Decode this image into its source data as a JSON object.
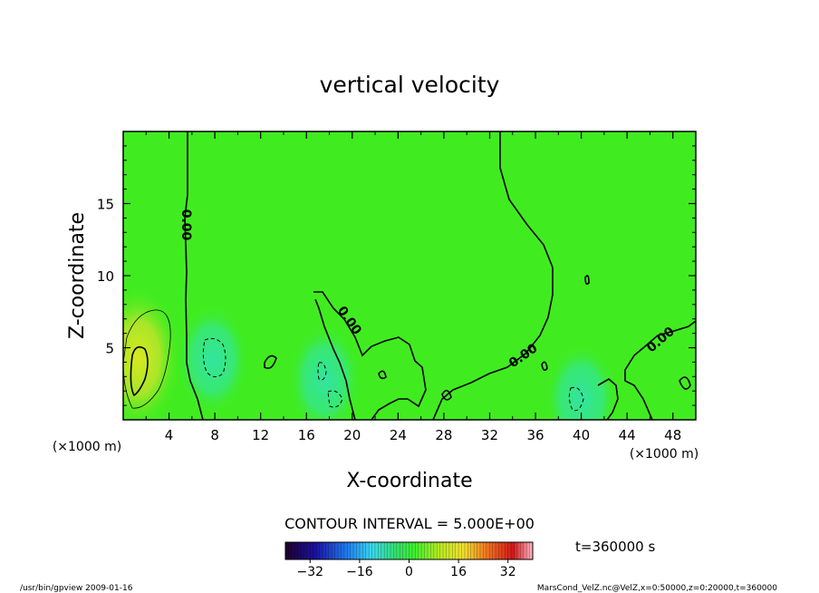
{
  "chart_data": {
    "type": "heatmap",
    "title": "vertical velocity",
    "xlabel": "X-coordinate",
    "ylabel": "Z-coordinate",
    "x_unit": "(×1000 m)",
    "y_unit": "(×1000 m)",
    "xlim": [
      0,
      50
    ],
    "ylim": [
      0,
      20
    ],
    "x_ticks": [
      "4",
      "8",
      "12",
      "16",
      "20",
      "24",
      "28",
      "32",
      "36",
      "40",
      "44",
      "48"
    ],
    "x_tick_values": [
      4,
      8,
      12,
      16,
      20,
      24,
      28,
      32,
      36,
      40,
      44,
      48
    ],
    "y_ticks": [
      "5",
      "10",
      "15"
    ],
    "y_tick_values": [
      5,
      10,
      15
    ],
    "contour_interval_label": "CONTOUR INTERVAL = 5.000E+00",
    "contour_labels": [
      "0.00",
      "0.00",
      "0.00",
      "0.00"
    ],
    "colorbar": {
      "ticks": [
        "−32",
        "−16",
        "0",
        "16",
        "32"
      ],
      "tick_values": [
        -32,
        -16,
        0,
        16,
        32
      ],
      "range": [
        -40,
        40
      ]
    },
    "features": [
      {
        "x": 1.3,
        "z": 4.3,
        "value": 10
      },
      {
        "x": 7.8,
        "z": 4.2,
        "value": -5
      },
      {
        "x": 17.6,
        "z": 2.8,
        "value": -4
      },
      {
        "x": 40.0,
        "z": 1.5,
        "value": -5
      }
    ]
  },
  "time_label": "t=360000 s",
  "footer_left": "/usr/bin/gpview   2009-01-16",
  "footer_right": "MarsCond_VelZ.nc@VelZ,x=0:50000,z=0:20000,t=360000"
}
